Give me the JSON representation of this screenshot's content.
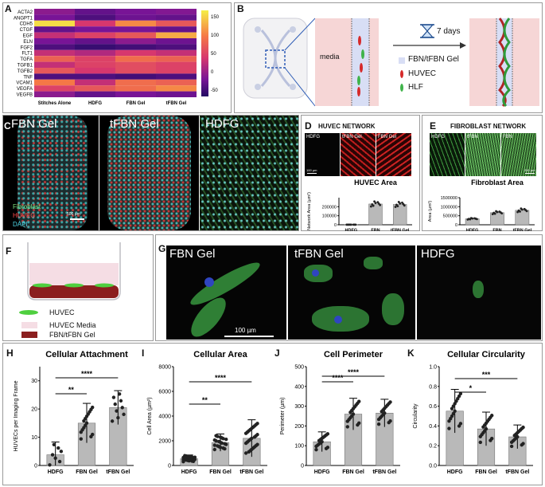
{
  "panels": {
    "A": "A",
    "B": "B",
    "C": "C",
    "D": "D",
    "E": "E",
    "F": "F",
    "G": "G",
    "H": "H",
    "I": "I",
    "J": "J",
    "K": "K"
  },
  "heatmap": {
    "rows": [
      "ACTA2",
      "ANGPT1",
      "CDH5",
      "CTGF",
      "EGF",
      "ELN",
      "FGF2",
      "FLT1",
      "TGFA",
      "TGFB1",
      "TGFB2",
      "TNF",
      "VCAM1",
      "VEGFA",
      "VEGFB"
    ],
    "cols": [
      "Stitches Alone",
      "HDFG",
      "FBN Gel",
      "tFBN Gel"
    ],
    "values": [
      [
        -10,
        -30,
        -20,
        -15
      ],
      [
        -20,
        -40,
        -25,
        -30
      ],
      [
        150,
        30,
        100,
        60
      ],
      [
        -30,
        -20,
        -20,
        -30
      ],
      [
        20,
        40,
        60,
        120
      ],
      [
        -20,
        -30,
        -10,
        -25
      ],
      [
        -40,
        -50,
        -45,
        -40
      ],
      [
        20,
        10,
        30,
        20
      ],
      [
        70,
        40,
        80,
        70
      ],
      [
        20,
        40,
        50,
        40
      ],
      [
        60,
        30,
        50,
        40
      ],
      [
        -40,
        -40,
        -45,
        -40
      ],
      [
        90,
        20,
        80,
        70
      ],
      [
        40,
        60,
        80,
        100
      ],
      [
        -10,
        -30,
        -20,
        -25
      ]
    ],
    "scale_ticks": [
      "150",
      "100",
      "50",
      "0",
      "-50"
    ]
  },
  "panelB": {
    "media": "media",
    "days": "7 days",
    "legend": [
      "FBN/tFBN Gel",
      "HUVEC",
      "HLF"
    ],
    "colors": {
      "gel": "#d8def5",
      "huvec": "#d62a2a",
      "hlf": "#3fb34a",
      "channel": "#f6d6d6"
    }
  },
  "panelC": {
    "labels": [
      "FBN Gel",
      "tFBN Gel",
      "HDFG"
    ],
    "legend": [
      "Fibroblast",
      "HUVEC",
      "DAPI"
    ],
    "scale": "500 µm"
  },
  "panelD": {
    "title": "HUVEC NETWORK",
    "img_labels": [
      "HDFG",
      "tFBN Gel",
      "FBN Gel"
    ],
    "scale": "100 µm",
    "chart_title": "HUVEC Area",
    "ylabel": "Network Area (µm²)",
    "yticks": [
      "200000",
      "100000",
      "0"
    ],
    "sig": [
      "****",
      "****"
    ]
  },
  "panelE": {
    "title": "FIBROBLAST NETWORK",
    "img_labels": [
      "HDFG",
      "tFBN",
      "FBN"
    ],
    "scale": "200 µm",
    "chart_title": "Fibroblast Area",
    "ylabel": "Area (µm²)",
    "yticks": [
      "1500000",
      "1000000",
      "500000",
      "0"
    ],
    "sig": [
      "***",
      "****"
    ]
  },
  "panelF": {
    "legend": [
      "HUVEC",
      "HUVEC Media",
      "FBN/tFBN Gel"
    ]
  },
  "panelG": {
    "labels": [
      "FBN Gel",
      "tFBN Gel",
      "HDFG"
    ],
    "scale": "100 µm"
  },
  "chart_data": [
    {
      "type": "bar",
      "panel": "D",
      "title": "HUVEC Area",
      "categories": [
        "HDFG",
        "FBN",
        "tFBN Gel"
      ],
      "values": [
        1000,
        230000,
        225000
      ],
      "ylabel": "Network Area (µm²)",
      "ylim": [
        0,
        300000
      ]
    },
    {
      "type": "bar",
      "panel": "E",
      "title": "Fibroblast Area",
      "categories": [
        "HDFG",
        "FBN",
        "tFBN Gel"
      ],
      "values": [
        330000,
        670000,
        800000
      ],
      "ylabel": "Area (µm²)",
      "ylim": [
        0,
        1500000
      ]
    },
    {
      "type": "bar",
      "panel": "H",
      "title": "Cellular Attachment",
      "categories": [
        "HDFG",
        "FBN Gel",
        "tFBN Gel"
      ],
      "values": [
        3.8,
        15,
        20.5
      ],
      "errors": [
        4.5,
        7,
        6
      ],
      "ylabel": "HUVECs per Imaging Frame",
      "ylim": [
        0,
        35
      ],
      "yticks": [
        "0",
        "10",
        "20",
        "30"
      ],
      "sig": [
        "**",
        "****"
      ]
    },
    {
      "type": "bar",
      "panel": "I",
      "title": "Cellular Area",
      "categories": [
        "HDFG",
        "FBN Gel",
        "tFBN Gel"
      ],
      "values": [
        550,
        1850,
        2200
      ],
      "errors": [
        300,
        700,
        1500
      ],
      "ylabel": "Cell Area (µm²)",
      "ylim": [
        0,
        8000
      ],
      "yticks": [
        "0",
        "2000",
        "4000",
        "6000",
        "8000"
      ],
      "sig": [
        "**",
        "****"
      ]
    },
    {
      "type": "bar",
      "panel": "J",
      "title": "Cell Perimeter",
      "categories": [
        "HDFG",
        "FBN Gel",
        "tFBN Gel"
      ],
      "values": [
        120,
        260,
        265
      ],
      "errors": [
        50,
        80,
        70
      ],
      "ylabel": "Perimeter (µm)",
      "ylim": [
        0,
        500
      ],
      "yticks": [
        "0",
        "100",
        "200",
        "300",
        "400",
        "500"
      ],
      "sig": [
        "****",
        "****"
      ]
    },
    {
      "type": "bar",
      "panel": "K",
      "title": "Cellular Circularity",
      "categories": [
        "HDFG",
        "FBN Gel",
        "tFBN Gel"
      ],
      "values": [
        0.55,
        0.37,
        0.29
      ],
      "errors": [
        0.22,
        0.17,
        0.12
      ],
      "ylabel": "Circularity",
      "ylim": [
        0,
        1.0
      ],
      "yticks": [
        "0.0",
        "0.2",
        "0.4",
        "0.6",
        "0.8",
        "1.0"
      ],
      "sig": [
        "*",
        "***"
      ]
    }
  ]
}
